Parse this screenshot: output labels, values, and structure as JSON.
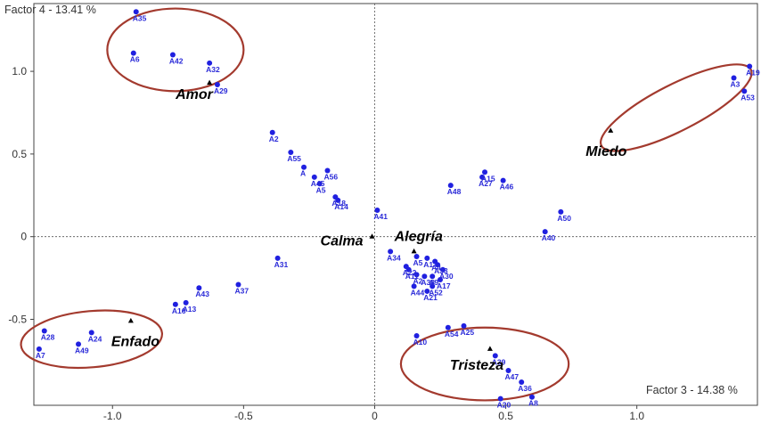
{
  "chart_data": {
    "type": "scatter",
    "xlabel": "Factor 3  -  14.38 %",
    "ylabel": "Factor 4  -  13.41 %",
    "xlim": [
      -1.3,
      1.46
    ],
    "ylim": [
      -1.02,
      1.41
    ],
    "x_ticks": [
      -1.0,
      -0.5,
      0,
      0.5,
      1.0
    ],
    "y_ticks": [
      1.0,
      0.5,
      0,
      -0.5
    ],
    "y_tick_labels": [
      "1.0",
      "0.5",
      "0",
      "-0.5"
    ],
    "grid": false,
    "point_color": "#2020e0",
    "centroid_color": "#000000",
    "ellipse_color": "#a33a2e",
    "points": [
      {
        "label": "A35",
        "x": -0.91,
        "y": 1.36
      },
      {
        "label": "A6",
        "x": -0.92,
        "y": 1.11
      },
      {
        "label": "A42",
        "x": -0.77,
        "y": 1.1
      },
      {
        "label": "A32",
        "x": -0.63,
        "y": 1.05
      },
      {
        "label": "A29",
        "x": -0.6,
        "y": 0.92
      },
      {
        "label": "A3",
        "x": 1.37,
        "y": 0.96
      },
      {
        "label": "A19",
        "x": 1.43,
        "y": 1.03
      },
      {
        "label": "A53",
        "x": 1.41,
        "y": 0.88
      },
      {
        "label": "A2",
        "x": -0.39,
        "y": 0.63
      },
      {
        "label": "A55",
        "x": -0.32,
        "y": 0.51
      },
      {
        "label": "A",
        "x": -0.27,
        "y": 0.42
      },
      {
        "label": "A45",
        "x": -0.23,
        "y": 0.36
      },
      {
        "label": "A56",
        "x": -0.18,
        "y": 0.4
      },
      {
        "label": "A5",
        "x": -0.21,
        "y": 0.32
      },
      {
        "label": "A18",
        "x": -0.15,
        "y": 0.24
      },
      {
        "label": "A14",
        "x": -0.14,
        "y": 0.22
      },
      {
        "label": "A41",
        "x": 0.01,
        "y": 0.16
      },
      {
        "label": "A48",
        "x": 0.29,
        "y": 0.31
      },
      {
        "label": "A15",
        "x": 0.42,
        "y": 0.39
      },
      {
        "label": "A27",
        "x": 0.41,
        "y": 0.36
      },
      {
        "label": "A46",
        "x": 0.49,
        "y": 0.34
      },
      {
        "label": "A50",
        "x": 0.71,
        "y": 0.15
      },
      {
        "label": "A40",
        "x": 0.65,
        "y": 0.03
      },
      {
        "label": "A31",
        "x": -0.37,
        "y": -0.13
      },
      {
        "label": "A37",
        "x": -0.52,
        "y": -0.29
      },
      {
        "label": "A43",
        "x": -0.67,
        "y": -0.31
      },
      {
        "label": "A13",
        "x": -0.72,
        "y": -0.4
      },
      {
        "label": "A16",
        "x": -0.76,
        "y": -0.41
      },
      {
        "label": "A34",
        "x": 0.06,
        "y": -0.09
      },
      {
        "label": "A5",
        "x": 0.16,
        "y": -0.12
      },
      {
        "label": "A1",
        "x": 0.2,
        "y": -0.13
      },
      {
        "label": "A4",
        "x": 0.23,
        "y": -0.15
      },
      {
        "label": "A22",
        "x": 0.12,
        "y": -0.18
      },
      {
        "label": "A33",
        "x": 0.24,
        "y": -0.17
      },
      {
        "label": "A30",
        "x": 0.26,
        "y": -0.2
      },
      {
        "label": "A11",
        "x": 0.13,
        "y": -0.2
      },
      {
        "label": "A2",
        "x": 0.16,
        "y": -0.23
      },
      {
        "label": "A38",
        "x": 0.19,
        "y": -0.24
      },
      {
        "label": "A9",
        "x": 0.22,
        "y": -0.24
      },
      {
        "label": "A17",
        "x": 0.25,
        "y": -0.26
      },
      {
        "label": "A44",
        "x": 0.15,
        "y": -0.3
      },
      {
        "label": "A52",
        "x": 0.22,
        "y": -0.3
      },
      {
        "label": "A21",
        "x": 0.2,
        "y": -0.33
      },
      {
        "label": "A28",
        "x": -1.26,
        "y": -0.57
      },
      {
        "label": "A7",
        "x": -1.28,
        "y": -0.68
      },
      {
        "label": "A49",
        "x": -1.13,
        "y": -0.65
      },
      {
        "label": "A24",
        "x": -1.08,
        "y": -0.58
      },
      {
        "label": "A54",
        "x": 0.28,
        "y": -0.55
      },
      {
        "label": "A25",
        "x": 0.34,
        "y": -0.54
      },
      {
        "label": "A10",
        "x": 0.16,
        "y": -0.6
      },
      {
        "label": "A39",
        "x": 0.46,
        "y": -0.72
      },
      {
        "label": "A47",
        "x": 0.51,
        "y": -0.81
      },
      {
        "label": "A36",
        "x": 0.56,
        "y": -0.88
      },
      {
        "label": "A20",
        "x": 0.48,
        "y": -0.98
      },
      {
        "label": "A8",
        "x": 0.6,
        "y": -0.97
      }
    ],
    "centroids": [
      {
        "label": "Amor",
        "x": -0.63,
        "y": 0.93
      },
      {
        "label": "Miedo",
        "x": 0.9,
        "y": 0.64
      },
      {
        "label": "Calma",
        "x": -0.01,
        "y": 0.0
      },
      {
        "label": "Alegría",
        "x": 0.15,
        "y": -0.09
      },
      {
        "label": "Enfado",
        "x": -0.93,
        "y": -0.51
      },
      {
        "label": "Tristeza",
        "x": 0.44,
        "y": -0.68
      }
    ]
  }
}
